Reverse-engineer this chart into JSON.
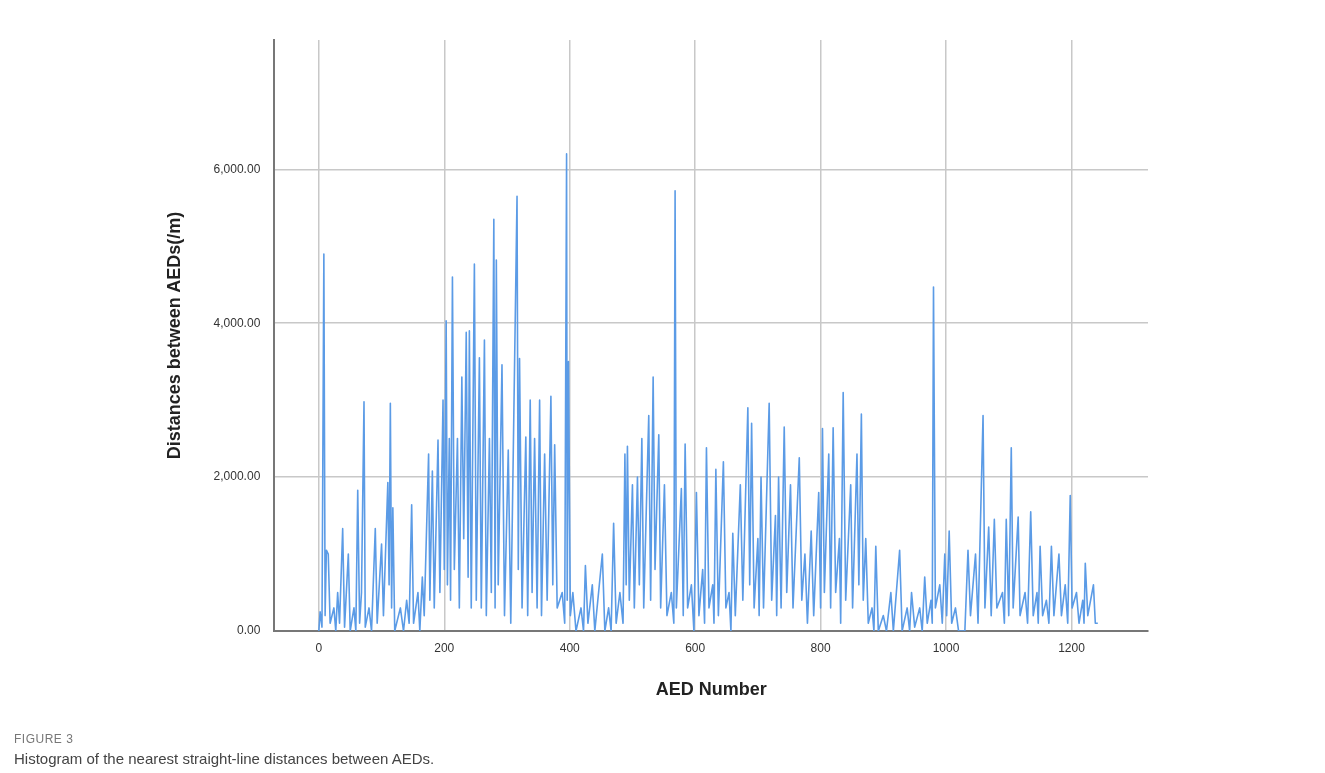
{
  "chart_data": {
    "type": "line",
    "xlabel": "AED Number",
    "ylabel": "Distances between AEDs(/m)",
    "annotations": [
      "FIGURE 3",
      "Histogram of the nearest straight-line distances between AEDs."
    ],
    "xlim": [
      -71,
      1322
    ],
    "ylim": [
      0,
      7680
    ],
    "xticks": [
      0,
      200,
      400,
      600,
      800,
      1000,
      1200
    ],
    "yticks": [
      {
        "value": 0,
        "label": "0.00"
      },
      {
        "value": 2000,
        "label": "2,000.00"
      },
      {
        "value": 4000,
        "label": "4,000.00"
      },
      {
        "value": 6000,
        "label": "6,000.00"
      }
    ],
    "grid": true,
    "marker": "none",
    "line_style": "solid",
    "x": [
      0,
      2,
      5,
      8,
      10,
      12,
      15,
      18,
      24,
      27,
      30,
      33,
      38,
      41,
      47,
      50,
      56,
      59,
      62,
      65,
      68,
      72,
      74,
      80,
      84,
      90,
      93,
      100,
      103,
      110,
      112,
      114,
      116,
      118,
      121,
      130,
      135,
      140,
      144,
      148,
      151,
      158,
      161,
      165,
      168,
      175,
      177,
      181,
      184,
      190,
      193,
      198,
      200,
      203,
      205,
      208,
      210,
      213,
      216,
      221,
      224,
      228,
      231,
      235,
      238,
      240,
      243,
      248,
      251,
      256,
      259,
      264,
      267,
      272,
      275,
      279,
      281,
      283,
      286,
      292,
      296,
      302,
      306,
      316,
      318,
      320,
      324,
      330,
      333,
      337,
      340,
      344,
      348,
      352,
      355,
      360,
      364,
      370,
      373,
      376,
      380,
      388,
      392,
      395,
      396,
      398,
      401,
      405,
      410,
      418,
      422,
      425,
      429,
      436,
      440,
      452,
      456,
      462,
      466,
      470,
      474,
      480,
      485,
      488,
      490,
      492,
      495,
      500,
      503,
      508,
      511,
      515,
      518,
      526,
      529,
      533,
      536,
      542,
      545,
      551,
      555,
      562,
      566,
      568,
      570,
      578,
      581,
      584,
      588,
      594,
      598,
      602,
      606,
      612,
      615,
      618,
      622,
      628,
      630,
      633,
      637,
      645,
      649,
      654,
      657,
      660,
      664,
      672,
      676,
      684,
      687,
      690,
      694,
      700,
      702,
      705,
      709,
      718,
      722,
      728,
      730,
      733,
      737,
      742,
      746,
      752,
      756,
      766,
      770,
      775,
      779,
      785,
      789,
      797,
      800,
      803,
      806,
      813,
      816,
      820,
      824,
      830,
      832,
      836,
      840,
      848,
      851,
      858,
      861,
      865,
      868,
      872,
      876,
      882,
      885,
      888,
      892,
      900,
      905,
      912,
      916,
      926,
      930,
      938,
      942,
      945,
      950,
      958,
      962,
      966,
      970,
      976,
      978,
      980,
      983,
      990,
      994,
      998,
      1001,
      1005,
      1009,
      1015,
      1020,
      1030,
      1035,
      1039,
      1047,
      1051,
      1059,
      1062,
      1068,
      1072,
      1077,
      1081,
      1090,
      1093,
      1096,
      1100,
      1104,
      1107,
      1115,
      1118,
      1126,
      1130,
      1135,
      1139,
      1145,
      1147,
      1150,
      1154,
      1160,
      1164,
      1168,
      1172,
      1180,
      1184,
      1190,
      1194,
      1198,
      1201,
      1208,
      1212,
      1218,
      1220,
      1222,
      1226,
      1235,
      1238,
      1242
    ],
    "series": [
      {
        "color": "#5b9be6",
        "values": [
          0,
          250,
          50,
          4900,
          200,
          1050,
          1000,
          100,
          300,
          0,
          500,
          100,
          1330,
          50,
          1000,
          0,
          300,
          0,
          1830,
          100,
          500,
          2980,
          50,
          300,
          0,
          1330,
          100,
          1130,
          200,
          1930,
          600,
          2960,
          300,
          1600,
          0,
          300,
          0,
          400,
          100,
          1640,
          100,
          500,
          0,
          700,
          200,
          2300,
          400,
          2080,
          300,
          2480,
          500,
          3000,
          800,
          4030,
          600,
          2500,
          400,
          4600,
          800,
          2500,
          300,
          3300,
          1200,
          3880,
          700,
          3900,
          300,
          4770,
          400,
          3550,
          300,
          3780,
          200,
          2500,
          500,
          5350,
          300,
          4820,
          600,
          3460,
          200,
          2350,
          100,
          5650,
          800,
          3540,
          300,
          2520,
          200,
          3000,
          500,
          2500,
          300,
          3000,
          200,
          2300,
          400,
          3050,
          600,
          2420,
          300,
          500,
          100,
          6200,
          400,
          3500,
          200,
          500,
          0,
          300,
          0,
          850,
          100,
          600,
          0,
          1000,
          0,
          300,
          0,
          1400,
          100,
          500,
          100,
          2300,
          600,
          2400,
          400,
          1900,
          300,
          2000,
          600,
          2500,
          300,
          2800,
          400,
          3300,
          800,
          2550,
          300,
          1900,
          200,
          500,
          100,
          5720,
          300,
          1850,
          200,
          2430,
          300,
          600,
          0,
          1800,
          200,
          800,
          100,
          2380,
          300,
          600,
          100,
          2100,
          200,
          2200,
          300,
          500,
          0,
          1270,
          200,
          1900,
          400,
          2900,
          600,
          2700,
          300,
          1200,
          200,
          2000,
          300,
          2960,
          400,
          1500,
          200,
          2000,
          300,
          2650,
          500,
          1900,
          300,
          2250,
          400,
          1000,
          100,
          1300,
          200,
          1800,
          300,
          2630,
          500,
          2300,
          300,
          2640,
          500,
          1200,
          100,
          3100,
          400,
          1900,
          300,
          2300,
          600,
          2820,
          400,
          1200,
          100,
          300,
          0,
          1100,
          0,
          200,
          0,
          500,
          0,
          1050,
          0,
          300,
          0,
          500,
          50,
          300,
          0,
          700,
          100,
          400,
          100,
          4470,
          300,
          600,
          100,
          1000,
          200,
          1300,
          100,
          300,
          0,
          0,
          1050,
          200,
          1000,
          100,
          2800,
          300,
          1350,
          200,
          1450,
          300,
          500,
          100,
          1450,
          200,
          2380,
          300,
          1480,
          200,
          500,
          100,
          1550,
          200,
          500,
          100,
          1100,
          200,
          400,
          100,
          1100,
          200,
          1000,
          200,
          600,
          100,
          1760,
          300,
          500,
          100,
          400,
          100,
          880,
          200,
          600,
          100,
          100
        ]
      }
    ]
  }
}
